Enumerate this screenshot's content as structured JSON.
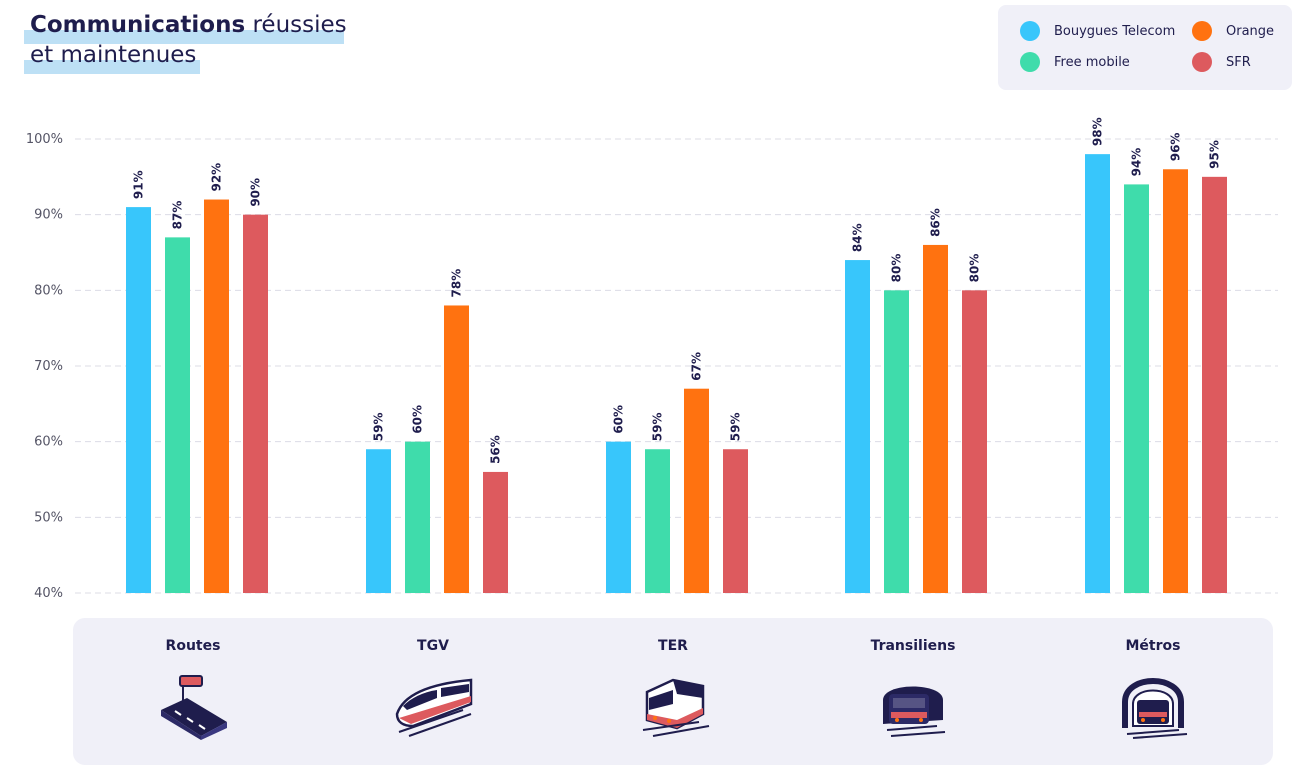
{
  "title": {
    "bold": "Communications",
    "rest": "réussies",
    "line2": "et maintenues"
  },
  "legend": [
    {
      "name": "Bouygues Telecom",
      "color": "#38c6fb"
    },
    {
      "name": "Orange",
      "color": "#ff7210"
    },
    {
      "name": "Free mobile",
      "color": "#3fdcab"
    },
    {
      "name": "SFR",
      "color": "#dd5a5e"
    }
  ],
  "categories_icons": [
    "road-icon",
    "tgv-train-icon",
    "ter-train-icon",
    "transilien-tunnel-icon",
    "metro-tunnel-icon"
  ],
  "chart_data": {
    "type": "bar",
    "categories": [
      "Routes",
      "TGV",
      "TER",
      "Transiliens",
      "Métros"
    ],
    "series": [
      {
        "name": "Bouygues Telecom",
        "color": "#38c6fb",
        "values": [
          91,
          59,
          60,
          84,
          98
        ],
        "labels": [
          "91%",
          "59%",
          "60%",
          "84%",
          "98%"
        ]
      },
      {
        "name": "Free mobile",
        "color": "#3fdcab",
        "values": [
          87,
          60,
          59,
          80,
          94
        ],
        "labels": [
          "87%",
          "60%",
          "59%",
          "80%",
          "94%"
        ]
      },
      {
        "name": "Orange",
        "color": "#ff7210",
        "values": [
          92,
          78,
          67,
          86,
          96
        ],
        "labels": [
          "92%",
          "78%",
          "67%",
          "86%",
          "96%"
        ]
      },
      {
        "name": "SFR",
        "color": "#dd5a5e",
        "values": [
          90,
          56,
          59,
          80,
          95
        ],
        "labels": [
          "90%",
          "56%",
          "59%",
          "80%",
          "95%"
        ]
      }
    ],
    "title": "Communications réussies et maintenues",
    "ylim": [
      40,
      100
    ],
    "yticks": [
      "40%",
      "50%",
      "60%",
      "70%",
      "80%",
      "90%",
      "100%"
    ],
    "grid": true,
    "legend_position": "top-right"
  }
}
